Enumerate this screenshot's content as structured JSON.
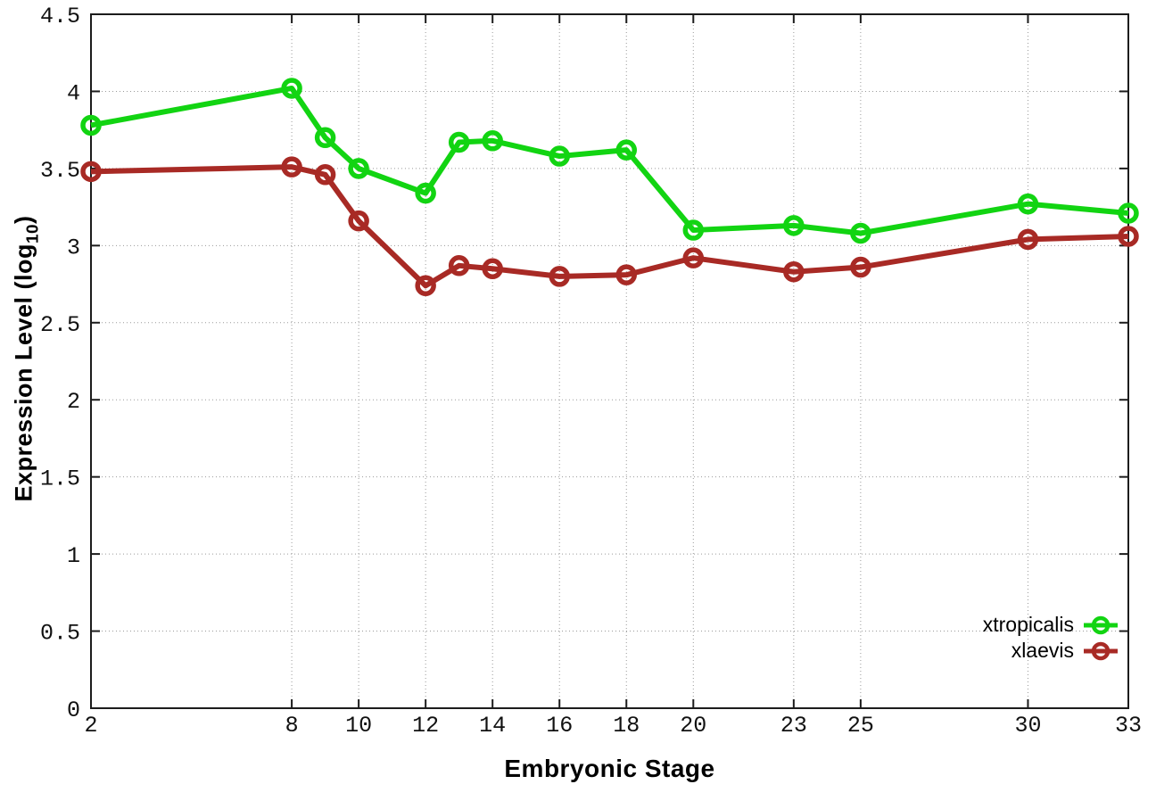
{
  "chart_data": {
    "type": "line",
    "title": "",
    "xlabel": "Embryonic Stage",
    "ylabel": {
      "prefix": "Expression Level (log",
      "sub": "10",
      "suffix": ")"
    },
    "xlim": [
      2,
      33
    ],
    "ylim": [
      0,
      4.5
    ],
    "x_ticks": [
      2,
      8,
      10,
      12,
      14,
      16,
      18,
      20,
      23,
      25,
      30,
      33
    ],
    "y_ticks": [
      0,
      0.5,
      1,
      1.5,
      2,
      2.5,
      3,
      3.5,
      4,
      4.5
    ],
    "grid": true,
    "legend_position": "bottom-right",
    "x": [
      2,
      8,
      9,
      10,
      12,
      13,
      14,
      16,
      18,
      20,
      23,
      25,
      30,
      33
    ],
    "series": [
      {
        "name": "xtropicalis",
        "color": "#12d412",
        "values": [
          3.78,
          4.02,
          3.7,
          3.5,
          3.34,
          3.67,
          3.68,
          3.58,
          3.62,
          3.1,
          3.13,
          3.08,
          3.27,
          3.21
        ]
      },
      {
        "name": "xlaevis",
        "color": "#a82a25",
        "values": [
          3.48,
          3.51,
          3.46,
          3.16,
          2.74,
          2.87,
          2.85,
          2.8,
          2.81,
          2.92,
          2.83,
          2.86,
          3.04,
          3.06
        ]
      }
    ]
  }
}
